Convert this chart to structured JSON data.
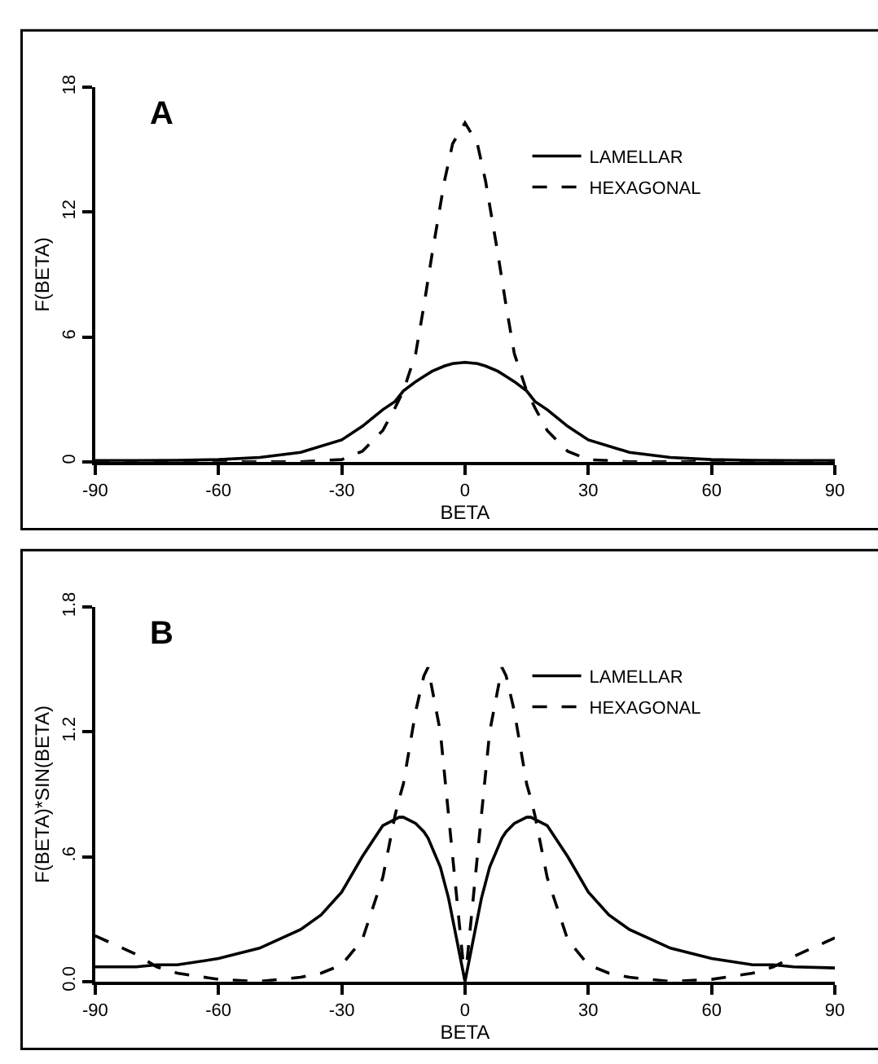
{
  "chart_data": [
    {
      "type": "line",
      "annotations": [
        "A"
      ],
      "xlabel": "BETA",
      "ylabel": "F(BETA)",
      "xlim": [
        -90,
        90
      ],
      "xticks": [
        -90,
        -60,
        -30,
        0,
        30,
        60,
        90
      ],
      "ylim": [
        0,
        18
      ],
      "yticks": [
        0,
        6,
        12,
        18
      ],
      "legend": "top right",
      "marker": "none",
      "x": [
        -90,
        -80,
        -70,
        -60,
        -50,
        -40,
        -30,
        -25,
        -20,
        -17,
        -15,
        -12,
        -10,
        -8,
        -5,
        -3,
        0,
        3,
        5,
        8,
        10,
        12,
        15,
        17,
        20,
        25,
        30,
        40,
        50,
        60,
        70,
        80,
        90
      ],
      "series": [
        {
          "name": "LAMELLAR",
          "color": "#000000",
          "line_style": "solid",
          "values": [
            0.05,
            0.05,
            0.06,
            0.1,
            0.2,
            0.45,
            1.05,
            1.7,
            2.5,
            2.9,
            3.4,
            3.85,
            4.1,
            4.35,
            4.6,
            4.72,
            4.78,
            4.72,
            4.6,
            4.35,
            4.1,
            3.85,
            3.4,
            2.9,
            2.5,
            1.7,
            1.05,
            0.45,
            0.2,
            0.1,
            0.06,
            0.05,
            0.05
          ]
        },
        {
          "name": "HEXAGONAL",
          "color": "#000000",
          "line_style": "dashed",
          "values": [
            0,
            0,
            0,
            0,
            0,
            0,
            0.1,
            0.5,
            1.5,
            2.6,
            3.4,
            5.2,
            7.5,
            10,
            13.5,
            15.3,
            16.3,
            15.3,
            13.5,
            10,
            7.5,
            5.2,
            3.4,
            2.6,
            1.5,
            0.5,
            0.1,
            0,
            0,
            0,
            0,
            0,
            0
          ]
        }
      ]
    },
    {
      "type": "line",
      "annotations": [
        "B"
      ],
      "xlabel": "BETA",
      "ylabel": "F(BETA)*SIN(BETA)",
      "xlim": [
        -90,
        90
      ],
      "xticks": [
        -90,
        -60,
        -30,
        0,
        30,
        60,
        90
      ],
      "ylim": [
        0,
        1.8
      ],
      "yticks": [
        {
          "value": 0,
          "label": "0.0"
        },
        {
          "value": 0.6,
          "label": ".6"
        },
        {
          "value": 1.2,
          "label": "1.2"
        },
        {
          "value": 1.8,
          "label": "1.8"
        }
      ],
      "legend": "top right",
      "marker": "none",
      "x": [
        -90,
        -80,
        -75,
        -70,
        -60,
        -50,
        -40,
        -35,
        -30,
        -25,
        -20,
        -17,
        -16,
        -15,
        -12,
        -10,
        -9,
        -6,
        -4,
        -3,
        -2,
        0,
        2,
        3,
        4,
        6,
        9,
        10,
        12,
        15,
        16,
        17,
        20,
        25,
        30,
        35,
        40,
        50,
        60,
        70,
        75,
        80,
        90
      ],
      "series": [
        {
          "name": "LAMELLAR",
          "color": "#000000",
          "line_style": "solid",
          "values": [
            0.07,
            0.07,
            0.08,
            0.08,
            0.11,
            0.16,
            0.25,
            0.32,
            0.43,
            0.6,
            0.75,
            0.78,
            0.79,
            0.79,
            0.76,
            0.72,
            0.69,
            0.55,
            0.4,
            0.3,
            0.2,
            0,
            0.2,
            0.3,
            0.4,
            0.55,
            0.69,
            0.72,
            0.76,
            0.79,
            0.79,
            0.78,
            0.75,
            0.6,
            0.43,
            0.32,
            0.25,
            0.16,
            0.11,
            0.08,
            0.08,
            0.07,
            0.065
          ]
        },
        {
          "name": "HEXAGONAL",
          "color": "#000000",
          "line_style": "dashed",
          "values": [
            0.22,
            0.13,
            0.07,
            0.04,
            0.01,
            0,
            0.02,
            0.04,
            0.08,
            0.2,
            0.5,
            0.8,
            0.88,
            0.95,
            1.3,
            1.47,
            1.51,
            1.2,
            0.8,
            0.6,
            0.4,
            0,
            0.4,
            0.6,
            0.8,
            1.2,
            1.51,
            1.47,
            1.3,
            0.95,
            0.88,
            0.8,
            0.5,
            0.2,
            0.08,
            0.04,
            0.02,
            0,
            0.01,
            0.04,
            0.07,
            0.12,
            0.21
          ]
        }
      ]
    }
  ]
}
